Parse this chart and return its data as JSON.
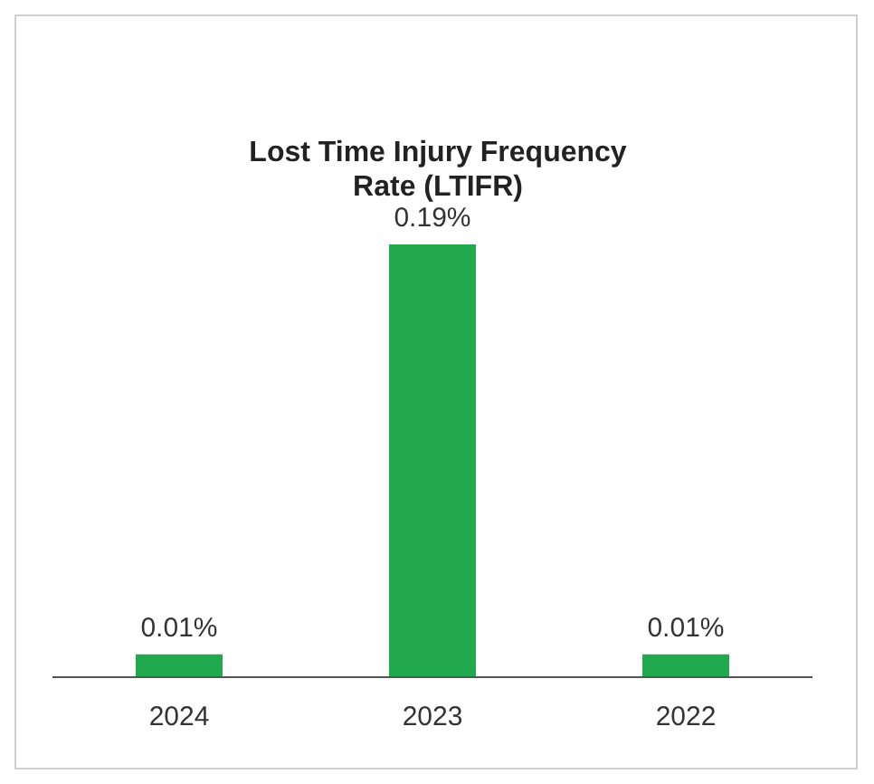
{
  "chart_data": {
    "type": "bar",
    "title": "Lost Time Injury Frequency Rate (LTIFR)",
    "categories": [
      "2024",
      "2023",
      "2022"
    ],
    "values": [
      0.01,
      0.19,
      0.01
    ],
    "value_labels": [
      "0.01%",
      "0.19%",
      "0.01%"
    ],
    "color": "#22a84e",
    "grid": false,
    "legend": false
  }
}
